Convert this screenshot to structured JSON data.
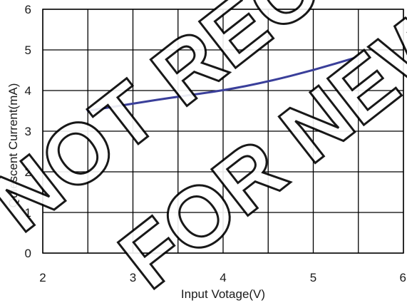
{
  "chart_data": {
    "type": "line",
    "title": "",
    "xlabel": "Input Votage(V)",
    "ylabel": "Quiescent Current(mA)",
    "xlim": [
      2,
      6
    ],
    "ylim": [
      0,
      6
    ],
    "xticks": [
      2,
      3,
      4,
      5,
      6
    ],
    "yticks": [
      0,
      1,
      2,
      3,
      4,
      5,
      6
    ],
    "grid": true,
    "series": [
      {
        "color": "#3a3f9a",
        "x": [
          2.5,
          3.0,
          3.5,
          4.0,
          4.5,
          5.0,
          5.5
        ],
        "y": [
          3.5,
          3.68,
          3.85,
          4.0,
          4.22,
          4.5,
          4.83
        ]
      }
    ]
  },
  "watermark": {
    "line1": "NOT RECOMMENDED",
    "line2": "FOR NEW DESIGN"
  }
}
